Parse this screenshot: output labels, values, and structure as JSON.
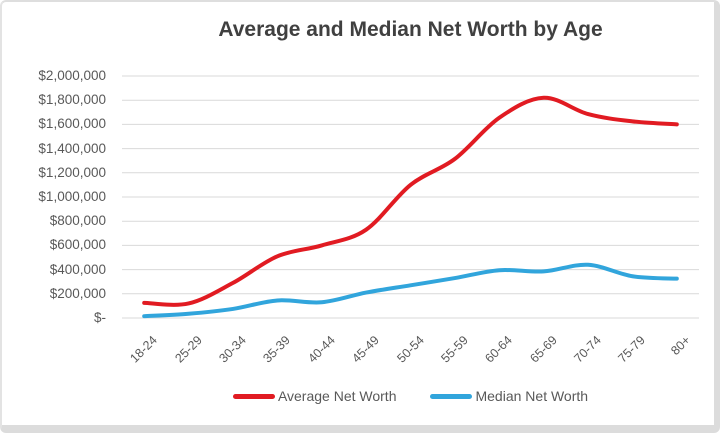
{
  "chart_data": {
    "type": "line",
    "title": "Average and Median Net Worth by Age",
    "categories": [
      "18-24",
      "25-29",
      "30-34",
      "35-39",
      "40-44",
      "45-49",
      "50-54",
      "55-59",
      "60-64",
      "65-69",
      "70-74",
      "75-79",
      "80+"
    ],
    "series": [
      {
        "name": "Average Net Worth",
        "color": "#e11b22",
        "values": [
          125000,
          120000,
          290000,
          510000,
          600000,
          730000,
          1100000,
          1315000,
          1655000,
          1820000,
          1685000,
          1625000,
          1600000
        ]
      },
      {
        "name": "Median Net Worth",
        "color": "#31a5dc",
        "values": [
          15000,
          35000,
          75000,
          145000,
          130000,
          210000,
          270000,
          330000,
          395000,
          385000,
          440000,
          345000,
          325000
        ]
      }
    ],
    "y_ticks": [
      "$2,000,000",
      "$1,800,000",
      "$1,600,000",
      "$1,400,000",
      "$1,200,000",
      "$1,000,000",
      "$800,000",
      "$600,000",
      "$400,000",
      "$200,000",
      "$-"
    ],
    "ylim": [
      0,
      2000000
    ],
    "xlabel": "",
    "ylabel": "",
    "grid": "horizontal",
    "gridline_color": "#d9d9d9",
    "smoothed": true,
    "legend_position": "bottom",
    "title_color": "#404040",
    "axis_label_color": "#595959",
    "line_width": 4
  }
}
